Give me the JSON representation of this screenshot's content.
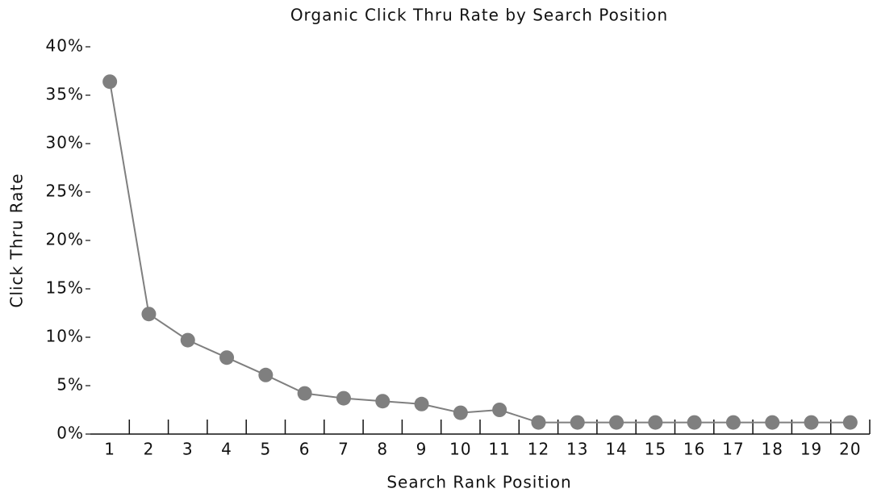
{
  "chart_data": {
    "type": "line",
    "title": "Organic Click Thru Rate by Search Position",
    "x_label": "Search Rank Position",
    "y_label": "Click Thru Rate",
    "categories": [
      "1",
      "2",
      "3",
      "4",
      "5",
      "6",
      "7",
      "8",
      "9",
      "10",
      "11",
      "12",
      "13",
      "14",
      "15",
      "16",
      "17",
      "18",
      "19",
      "20"
    ],
    "values": [
      36.4,
      12.4,
      9.7,
      7.9,
      6.1,
      4.2,
      3.7,
      3.4,
      3.1,
      2.2,
      2.5,
      1.2,
      1.2,
      1.2,
      1.2,
      1.2,
      1.2,
      1.2,
      1.2,
      1.2
    ],
    "color": "#7f7f7f",
    "ylim": [
      0,
      40
    ],
    "yticks": [
      {
        "value": 0,
        "label": "0%"
      },
      {
        "value": 5,
        "label": "5%"
      },
      {
        "value": 10,
        "label": "10%"
      },
      {
        "value": 15,
        "label": "15%"
      },
      {
        "value": 20,
        "label": "20%"
      },
      {
        "value": 25,
        "label": "25%"
      },
      {
        "value": 30,
        "label": "30%"
      },
      {
        "value": 35,
        "label": "35%"
      },
      {
        "value": 40,
        "label": "40%"
      }
    ],
    "grid": false
  }
}
